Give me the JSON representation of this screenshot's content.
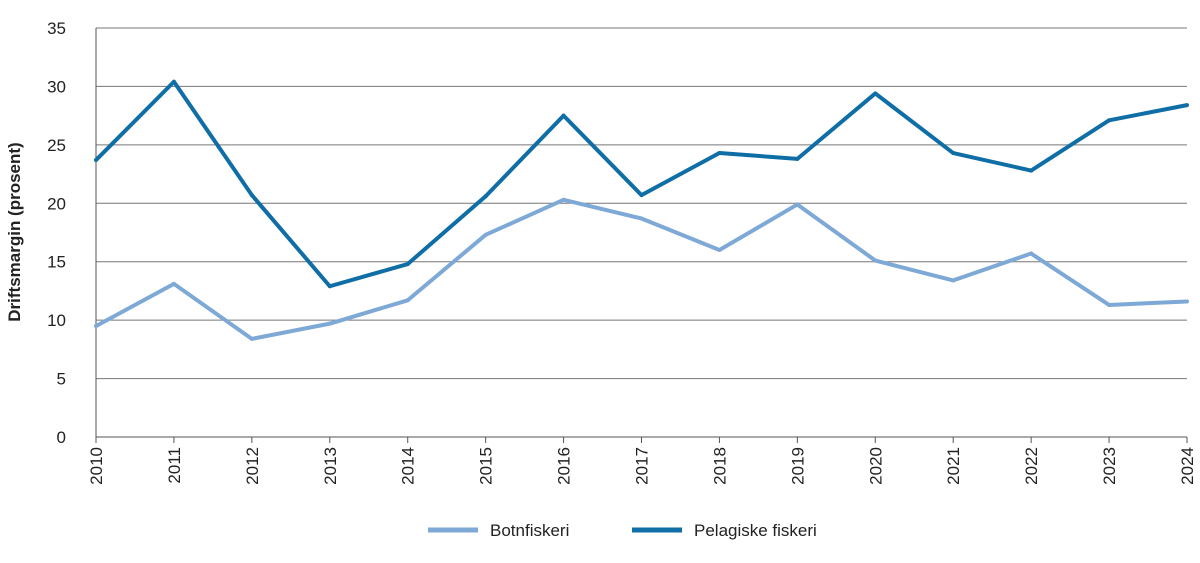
{
  "chart_data": {
    "type": "line",
    "title": "",
    "xlabel": "",
    "ylabel": "Driftsmargin (prosent)",
    "ylim": [
      0,
      35
    ],
    "yticks": [
      0,
      5,
      10,
      15,
      20,
      25,
      30,
      35
    ],
    "grid": true,
    "legend_position": "bottom",
    "categories": [
      "2010",
      "2011",
      "2012",
      "2013",
      "2014",
      "2015",
      "2016",
      "2017",
      "2018",
      "2019",
      "2020",
      "2021",
      "2022",
      "2023",
      "2024"
    ],
    "series": [
      {
        "name": "Botnfiskeri",
        "color": "#7ea9d7",
        "values": [
          9.5,
          13.1,
          8.4,
          9.7,
          11.7,
          17.3,
          20.3,
          18.7,
          16.0,
          19.9,
          15.1,
          13.4,
          15.7,
          11.3,
          11.6
        ]
      },
      {
        "name": "Pelagiske fiskeri",
        "color": "#0f6ea6",
        "values": [
          23.7,
          30.4,
          20.7,
          12.9,
          14.8,
          20.6,
          27.5,
          20.7,
          24.3,
          23.8,
          29.4,
          24.3,
          22.8,
          27.1,
          28.4
        ]
      }
    ]
  }
}
